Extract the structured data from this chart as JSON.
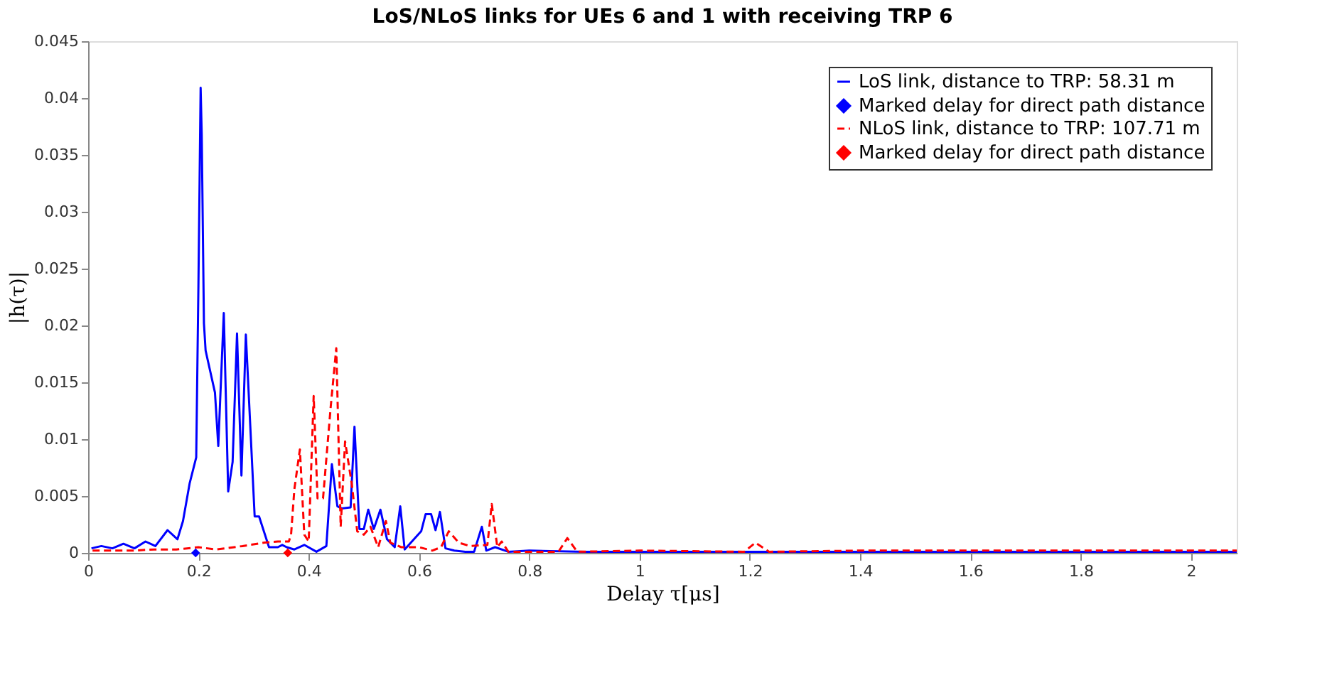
{
  "chart_data": {
    "type": "line",
    "title": "LoS/NLoS links for UEs 6 and 1 with receiving TRP 6",
    "xlabel": "Delay τ[μs]",
    "ylabel": "|h(τ)|",
    "xlim": [
      0,
      2.083
    ],
    "ylim": [
      0,
      0.045
    ],
    "xticks": [
      0,
      0.2,
      0.4,
      0.6,
      0.8,
      1,
      1.2,
      1.4,
      1.6,
      1.8,
      2
    ],
    "yticks": [
      0,
      0.005,
      0.01,
      0.015,
      0.02,
      0.025,
      0.03,
      0.035,
      0.04,
      0.045
    ],
    "grid": false,
    "legend": "top right",
    "series": [
      {
        "name": "LoS link, distance to TRP: 58.31 m",
        "color": "#0000ff",
        "line_style": "solid",
        "marker": "none",
        "x": [
          0.006,
          0.024,
          0.044,
          0.064,
          0.084,
          0.104,
          0.122,
          0.144,
          0.162,
          0.172,
          0.184,
          0.196,
          0.2,
          0.204,
          0.206,
          0.21,
          0.213,
          0.23,
          0.236,
          0.246,
          0.254,
          0.262,
          0.27,
          0.278,
          0.286,
          0.302,
          0.31,
          0.328,
          0.344,
          0.352,
          0.36,
          0.374,
          0.392,
          0.414,
          0.432,
          0.442,
          0.452,
          0.46,
          0.476,
          0.483,
          0.492,
          0.5,
          0.508,
          0.518,
          0.53,
          0.542,
          0.556,
          0.566,
          0.574,
          0.604,
          0.612,
          0.622,
          0.63,
          0.638,
          0.648,
          0.664,
          0.684,
          0.7,
          0.714,
          0.722,
          0.738,
          0.762,
          0.8,
          0.9,
          1.0,
          1.2,
          1.4,
          1.6,
          1.8,
          2.0,
          2.083
        ],
        "values": [
          0.0004,
          0.0006,
          0.0004,
          0.0008,
          0.0004,
          0.001,
          0.0006,
          0.002,
          0.0012,
          0.0028,
          0.0061,
          0.0084,
          0.0235,
          0.0409,
          0.0368,
          0.0202,
          0.0178,
          0.0141,
          0.0094,
          0.0211,
          0.0054,
          0.008,
          0.0193,
          0.0068,
          0.0192,
          0.0032,
          0.0032,
          0.0005,
          0.0005,
          0.0007,
          0.0005,
          0.0003,
          0.0007,
          0.0001,
          0.0006,
          0.0078,
          0.0041,
          0.0039,
          0.004,
          0.0111,
          0.0021,
          0.0021,
          0.0038,
          0.0021,
          0.0038,
          0.0012,
          0.0005,
          0.0041,
          0.0003,
          0.0019,
          0.0034,
          0.0034,
          0.002,
          0.0036,
          0.0004,
          0.0002,
          0.0001,
          0.0001,
          0.0023,
          0.0002,
          0.0005,
          0.0001,
          0.0002,
          0.0001,
          0.0001,
          0.0001,
          0.0001,
          0.0001,
          0.0001,
          0.0001,
          0.0001
        ]
      },
      {
        "name": "Marked delay for direct path distance",
        "type": "scatter",
        "color": "#0000ff",
        "marker": "diamond",
        "x": [
          0.195
        ],
        "values": [
          0
        ]
      },
      {
        "name": "NLoS link, distance to TRP: 107.71 m",
        "color": "#ff0000",
        "line_style": "dashed",
        "marker": "none",
        "x": [
          0.008,
          0.04,
          0.08,
          0.12,
          0.16,
          0.2,
          0.232,
          0.28,
          0.32,
          0.344,
          0.364,
          0.368,
          0.374,
          0.384,
          0.392,
          0.4,
          0.409,
          0.416,
          0.426,
          0.44,
          0.45,
          0.458,
          0.466,
          0.478,
          0.488,
          0.5,
          0.512,
          0.526,
          0.54,
          0.548,
          0.568,
          0.6,
          0.624,
          0.64,
          0.654,
          0.672,
          0.692,
          0.724,
          0.732,
          0.742,
          0.75,
          0.762,
          0.853,
          0.869,
          0.887,
          1.0,
          1.19,
          1.21,
          1.235,
          1.4,
          1.6,
          1.8,
          2.0,
          2.083
        ],
        "values": [
          0.0002,
          0.0002,
          0.0002,
          0.0003,
          0.0003,
          0.0005,
          0.0003,
          0.0006,
          0.0009,
          0.001,
          0.001,
          0.0016,
          0.0056,
          0.0091,
          0.0016,
          0.001,
          0.0138,
          0.0048,
          0.0048,
          0.0129,
          0.018,
          0.0023,
          0.0098,
          0.0061,
          0.0019,
          0.0016,
          0.0023,
          0.0005,
          0.0028,
          0.0009,
          0.0005,
          0.0005,
          0.0002,
          0.0005,
          0.0019,
          0.0009,
          0.0006,
          0.0007,
          0.0043,
          0.0005,
          0.001,
          0.0001,
          0.0001,
          0.0013,
          0.0001,
          0.0002,
          0.0001,
          0.0009,
          0.0001,
          0.0002,
          0.0002,
          0.0002,
          0.0002,
          0.0002
        ]
      },
      {
        "name": "Marked delay for direct path distance",
        "type": "scatter",
        "color": "#ff0000",
        "marker": "diamond",
        "x": [
          0.362
        ],
        "values": [
          0
        ]
      }
    ]
  }
}
